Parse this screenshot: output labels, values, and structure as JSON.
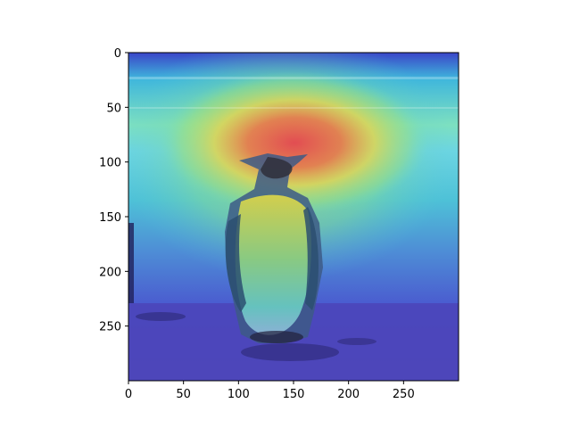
{
  "figure": {
    "image_subject": "penguin standing on a beach, with a heatmap overlay",
    "colormap": "jet",
    "colors": {
      "axis": "#000000",
      "background": "#ffffff"
    }
  },
  "axes": {
    "x_ticks": [
      0,
      50,
      100,
      150,
      200,
      250
    ],
    "y_ticks": [
      0,
      50,
      100,
      150,
      200,
      250
    ],
    "x_extent": [
      0,
      299
    ],
    "y_extent": [
      0,
      299
    ],
    "y_inverted": true
  }
}
